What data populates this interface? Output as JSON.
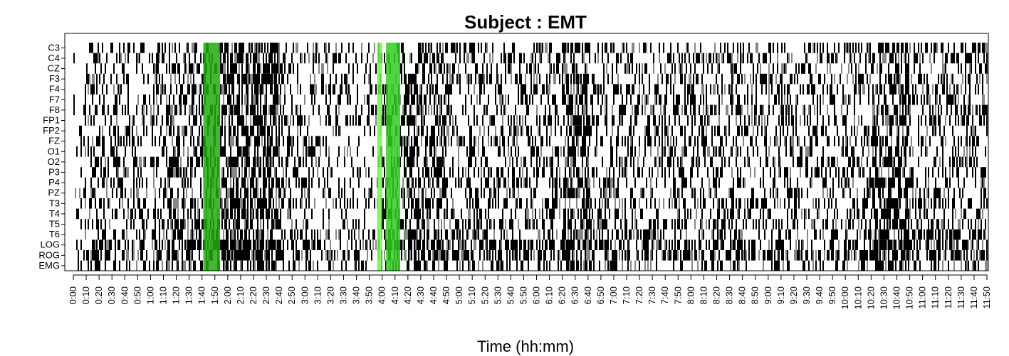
{
  "chart_data": {
    "type": "heatmap",
    "title": "Subject : EMT",
    "xlabel": "Time (hh:mm)",
    "ylabel": "",
    "xlim_minutes": [
      0,
      710
    ],
    "channels": [
      "C3",
      "C4",
      "CZ",
      "F3",
      "F4",
      "F7",
      "F8",
      "FP1",
      "FP2",
      "FZ",
      "O1",
      "O2",
      "P3",
      "P4",
      "PZ",
      "T3",
      "T4",
      "T5",
      "T6",
      "LOG",
      "ROG",
      "EMG"
    ],
    "x_tick_labels": [
      "0:00",
      "0:10",
      "0:20",
      "0:30",
      "0:40",
      "0:50",
      "1:00",
      "1:10",
      "1:20",
      "1:30",
      "1:40",
      "1:50",
      "2:00",
      "2:10",
      "2:20",
      "2:30",
      "2:40",
      "2:50",
      "3:00",
      "3:10",
      "3:20",
      "3:30",
      "3:40",
      "3:50",
      "4:00",
      "4:10",
      "4:20",
      "4:30",
      "4:40",
      "4:50",
      "5:00",
      "5:10",
      "5:20",
      "5:30",
      "5:40",
      "5:50",
      "6:00",
      "6:10",
      "6:20",
      "6:30",
      "6:40",
      "6:50",
      "7:00",
      "7:10",
      "7:20",
      "7:30",
      "7:40",
      "7:50",
      "8:00",
      "8:10",
      "8:20",
      "8:30",
      "8:40",
      "8:50",
      "9:00",
      "9:10",
      "9:20",
      "9:30",
      "9:40",
      "9:50",
      "10:00",
      "10:10",
      "10:20",
      "10:30",
      "10:40",
      "10:50",
      "11:00",
      "11:10",
      "11:20",
      "11:30",
      "11:40",
      "11:50"
    ],
    "highlighted_intervals": [
      {
        "start_min": 101,
        "end_min": 114,
        "color": "#22aa11"
      },
      {
        "start_min": 236,
        "end_min": 240,
        "color": "#77ee55"
      },
      {
        "start_min": 243,
        "end_min": 254,
        "color": "#33cc22"
      }
    ],
    "cell_colors": [
      "#000000",
      "#ffffff",
      "#888888"
    ],
    "grid": false,
    "legend": "none"
  }
}
